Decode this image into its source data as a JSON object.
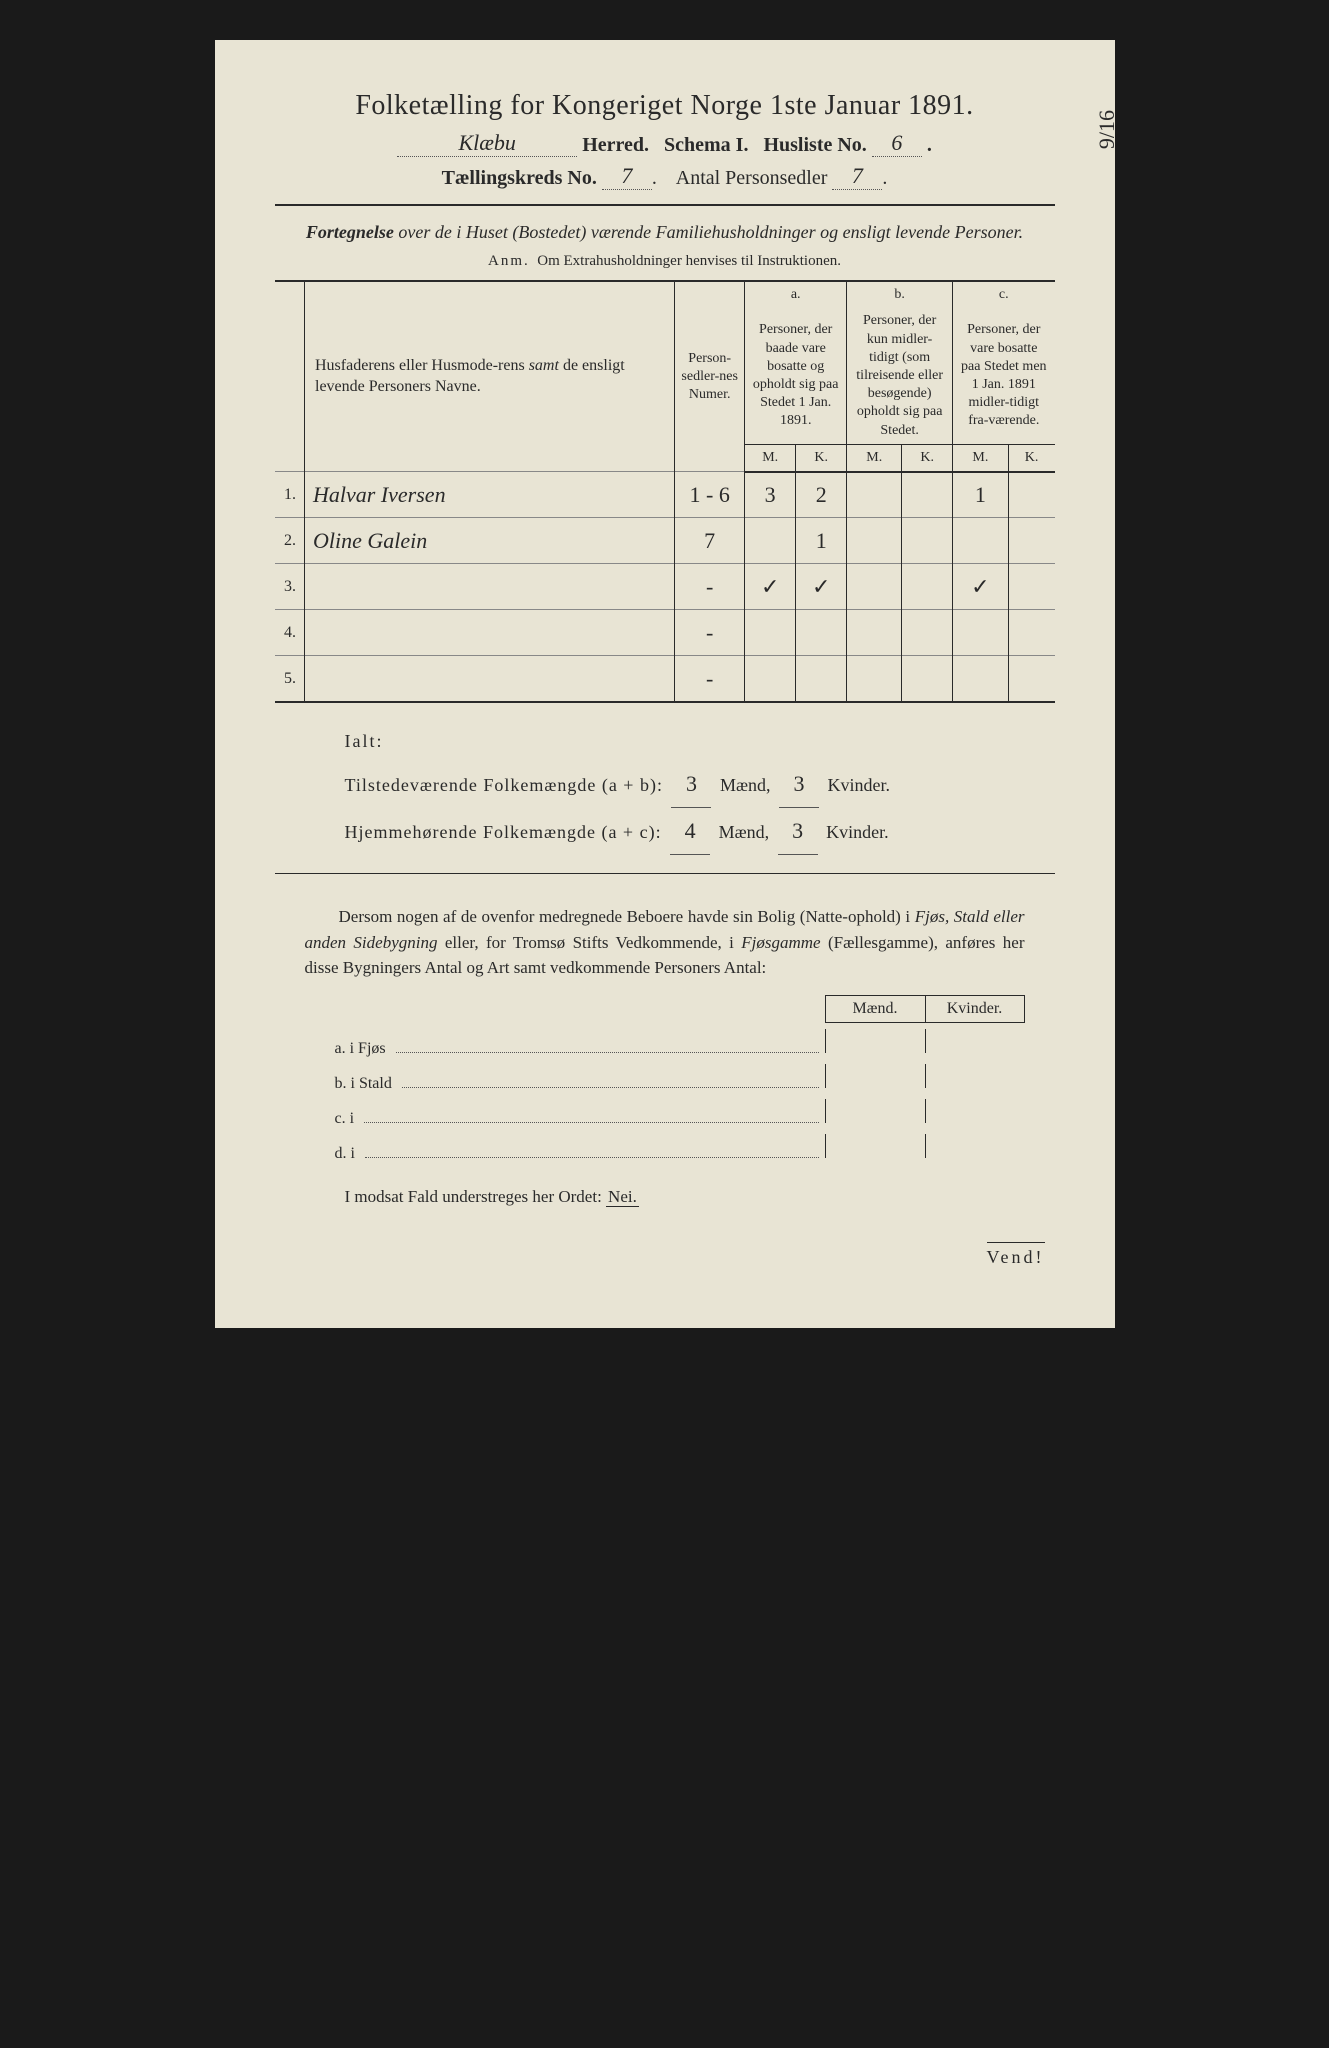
{
  "header": {
    "title_main": "Folketælling for Kongeriget Norge 1ste Januar 1891.",
    "herred_value": "Klæbu",
    "herred_label": "Herred.",
    "schema": "Schema I.",
    "husliste_label": "Husliste No.",
    "husliste_value": "6",
    "kreds_label": "Tællingskreds No.",
    "kreds_value": "7",
    "antal_label": "Antal Personsedler",
    "antal_value": "7",
    "side_note": "9/16"
  },
  "subtitle": {
    "line": "Fortegnelse over de i Huset (Bostedet) værende Familiehusholdninger og ensligt levende Personer.",
    "anm_label": "Anm.",
    "anm_text": "Om Extrahusholdninger henvises til Instruktionen."
  },
  "table": {
    "col_names": "Husfaderens eller Husmoderens samt de ensligt levende Personers Navne.",
    "col_numer": "Person-sedler-nes Numer.",
    "col_a_label": "a.",
    "col_a": "Personer, der baade vare bosatte og opholdt sig paa Stedet 1 Jan. 1891.",
    "col_b_label": "b.",
    "col_b": "Personer, der kun midler-tidigt (som tilreisende eller besøgende) opholdt sig paa Stedet.",
    "col_c_label": "c.",
    "col_c": "Personer, der vare bosatte paa Stedet men 1 Jan. 1891 midler-tidigt fra-værende.",
    "M": "M.",
    "K": "K.",
    "rows": [
      {
        "num": "1.",
        "name": "Halvar Iversen",
        "numer": "1 - 6",
        "aM": "3",
        "aK": "2",
        "bM": "",
        "bK": "",
        "cM": "1",
        "cK": ""
      },
      {
        "num": "2.",
        "name": "Oline Galein",
        "numer": "7",
        "aM": "",
        "aK": "1",
        "bM": "",
        "bK": "",
        "cM": "",
        "cK": ""
      },
      {
        "num": "3.",
        "name": "",
        "numer": "-",
        "aM": "✓",
        "aK": "✓",
        "bM": "",
        "bK": "",
        "cM": "✓",
        "cK": ""
      },
      {
        "num": "4.",
        "name": "",
        "numer": "-",
        "aM": "",
        "aK": "",
        "bM": "",
        "bK": "",
        "cM": "",
        "cK": ""
      },
      {
        "num": "5.",
        "name": "",
        "numer": "-",
        "aM": "",
        "aK": "",
        "bM": "",
        "bK": "",
        "cM": "",
        "cK": ""
      }
    ]
  },
  "totals": {
    "ialt": "Ialt:",
    "line1_label": "Tilstedeværende Folkemængde (a + b):",
    "line1_m": "3",
    "line1_k": "3",
    "line2_label": "Hjemmehørende Folkemængde (a + c):",
    "line2_m": "4",
    "line2_k": "3",
    "maend": "Mænd,",
    "kvinder": "Kvinder."
  },
  "para": "Dersom nogen af de ovenfor medregnede Beboere havde sin Bolig (Natte-ophold) i Fjøs, Stald eller anden Sidebygning eller, for Tromsø Stifts Vedkommende, i Fjøsgamme (Fællesgamme), anføres her disse Bygningers Antal og Art samt vedkommende Personers Antal:",
  "mk": {
    "m": "Mænd.",
    "k": "Kvinder."
  },
  "bldg": {
    "a": "a.  i      Fjøs",
    "b": "b.  i      Stald",
    "c": "c.  i",
    "d": "d.  i"
  },
  "nei_line": "I modsat Fald understreges her Ordet:",
  "nei": "Nei.",
  "vend": "Vend!"
}
